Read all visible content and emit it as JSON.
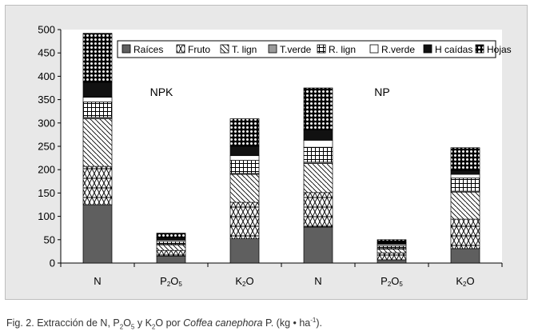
{
  "chart_data": {
    "type": "bar",
    "stacked": true,
    "categories": [
      "N",
      "P2O5",
      "K2O",
      "N",
      "P2O5",
      "K2O"
    ],
    "category_labels": [
      {
        "base": "N",
        "sub": ""
      },
      {
        "base": "P",
        "sub": "2",
        "tail": "O",
        "sub2": "5"
      },
      {
        "base": "K",
        "sub": "2",
        "tail": "O",
        "sub2": ""
      },
      {
        "base": "N",
        "sub": ""
      },
      {
        "base": "P",
        "sub": "2",
        "tail": "O",
        "sub2": "5"
      },
      {
        "base": "K",
        "sub": "2",
        "tail": "O",
        "sub2": ""
      }
    ],
    "series": [
      {
        "name": "Raíces",
        "pattern": "solid-gray",
        "values": [
          125,
          15,
          52,
          77,
          7,
          31
        ]
      },
      {
        "name": "Fruto",
        "pattern": "triangles",
        "values": [
          82,
          12,
          78,
          74,
          15,
          63
        ]
      },
      {
        "name": "T. lign",
        "pattern": "diagonal",
        "values": [
          102,
          12,
          60,
          62,
          8,
          58
        ]
      },
      {
        "name": "T.verde",
        "pattern": "light-gray",
        "values": [
          3,
          1,
          2,
          3,
          1,
          2
        ]
      },
      {
        "name": "R. lign",
        "pattern": "grid",
        "values": [
          33,
          6,
          28,
          32,
          6,
          28
        ]
      },
      {
        "name": "R.verde",
        "pattern": "white",
        "values": [
          10,
          3,
          10,
          15,
          3,
          8
        ]
      },
      {
        "name": "H caídas",
        "pattern": "black",
        "values": [
          32,
          5,
          20,
          22,
          4,
          8
        ]
      },
      {
        "name": "Hojas",
        "pattern": "dots",
        "values": [
          105,
          10,
          59,
          90,
          6,
          49
        ]
      }
    ],
    "ylim": [
      0,
      500
    ],
    "yticks": [
      0,
      50,
      100,
      150,
      200,
      250,
      300,
      350,
      400,
      450,
      500
    ],
    "group_labels": [
      "NPK",
      "NP"
    ],
    "legend_position": "top-right",
    "grid": false
  },
  "caption": {
    "prefix": "Fig. 2. Extracción de N, P",
    "p_sub1": "2",
    "mid1": "O",
    "p_sub2": "5",
    "mid2": " y K",
    "k_sub": "2",
    "mid3": "O por ",
    "species": "Coffea canephora",
    "suffix_author": " P. (kg • ha",
    "exp": "-1",
    "end": ")."
  }
}
